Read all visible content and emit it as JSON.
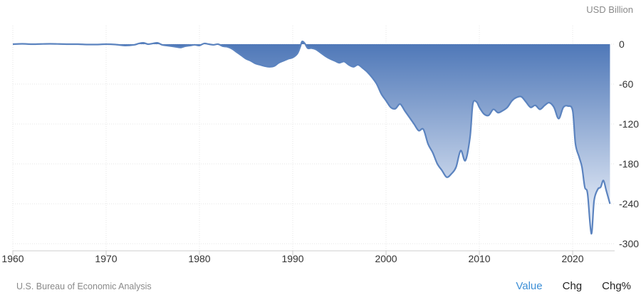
{
  "unit_label": "USD Billion",
  "source": "U.S. Bureau of Economic Analysis",
  "tabs": [
    {
      "label": "Value",
      "active": true
    },
    {
      "label": "Chg",
      "active": false
    },
    {
      "label": "Chg%",
      "active": false
    }
  ],
  "colors": {
    "line": "#5b83bf",
    "fill_top": "#4f78b8",
    "fill_bottom": "#e8eef8",
    "grid": "#e6e6e6",
    "tab_active": "#3d8fd6"
  },
  "chart_data": {
    "type": "area",
    "title": "",
    "xlabel": "",
    "ylabel": "USD Billion",
    "xlim": [
      1960,
      2024.5
    ],
    "ylim": [
      -300,
      12
    ],
    "grid": true,
    "y_axis_side": "right",
    "x_ticks": [
      1960,
      1970,
      1980,
      1990,
      2000,
      2010,
      2020
    ],
    "y_ticks": [
      0,
      -60,
      -120,
      -180,
      -240,
      -300
    ],
    "series": [
      {
        "values": [
          [
            1960,
            0
          ],
          [
            1961,
            0.5
          ],
          [
            1962,
            0
          ],
          [
            1963,
            0.3
          ],
          [
            1964,
            0.5
          ],
          [
            1965,
            0.3
          ],
          [
            1966,
            0
          ],
          [
            1967,
            0
          ],
          [
            1968,
            -0.5
          ],
          [
            1969,
            -0.5
          ],
          [
            1970,
            0
          ],
          [
            1971,
            -0.5
          ],
          [
            1972,
            -2
          ],
          [
            1973,
            -1
          ],
          [
            1973.5,
            1
          ],
          [
            1974,
            2
          ],
          [
            1974.5,
            0
          ],
          [
            1975,
            1
          ],
          [
            1975.5,
            2
          ],
          [
            1976,
            -1
          ],
          [
            1976.5,
            -2
          ],
          [
            1977,
            -3
          ],
          [
            1977.5,
            -4
          ],
          [
            1978,
            -5
          ],
          [
            1978.5,
            -3
          ],
          [
            1979,
            -2
          ],
          [
            1979.5,
            -1
          ],
          [
            1980,
            -2
          ],
          [
            1980.5,
            1
          ],
          [
            1981,
            0
          ],
          [
            1981.5,
            -1
          ],
          [
            1982,
            0
          ],
          [
            1982.5,
            -3
          ],
          [
            1983,
            -4
          ],
          [
            1983.5,
            -7
          ],
          [
            1984,
            -12
          ],
          [
            1984.5,
            -17
          ],
          [
            1985,
            -22
          ],
          [
            1985.5,
            -25
          ],
          [
            1986,
            -29
          ],
          [
            1986.5,
            -31
          ],
          [
            1987,
            -33
          ],
          [
            1987.5,
            -34
          ],
          [
            1988,
            -33
          ],
          [
            1988.5,
            -28
          ],
          [
            1989,
            -25
          ],
          [
            1989.5,
            -22
          ],
          [
            1990,
            -20
          ],
          [
            1990.5,
            -14
          ],
          [
            1990.8,
            -4
          ],
          [
            1991,
            4
          ],
          [
            1991.3,
            1
          ],
          [
            1991.6,
            -6
          ],
          [
            1992,
            -6
          ],
          [
            1992.5,
            -8
          ],
          [
            1993,
            -13
          ],
          [
            1993.5,
            -18
          ],
          [
            1994,
            -22
          ],
          [
            1994.5,
            -25
          ],
          [
            1995,
            -28
          ],
          [
            1995.5,
            -26
          ],
          [
            1996,
            -31
          ],
          [
            1996.5,
            -34
          ],
          [
            1997,
            -31
          ],
          [
            1997.5,
            -36
          ],
          [
            1998,
            -42
          ],
          [
            1998.5,
            -50
          ],
          [
            1999,
            -60
          ],
          [
            1999.5,
            -75
          ],
          [
            2000,
            -85
          ],
          [
            2000.5,
            -95
          ],
          [
            2001,
            -97
          ],
          [
            2001.5,
            -90
          ],
          [
            2002,
            -100
          ],
          [
            2002.5,
            -110
          ],
          [
            2003,
            -120
          ],
          [
            2003.5,
            -130
          ],
          [
            2004,
            -128
          ],
          [
            2004.5,
            -150
          ],
          [
            2005,
            -163
          ],
          [
            2005.5,
            -180
          ],
          [
            2006,
            -190
          ],
          [
            2006.5,
            -200
          ],
          [
            2007,
            -195
          ],
          [
            2007.5,
            -185
          ],
          [
            2008,
            -160
          ],
          [
            2008.5,
            -175
          ],
          [
            2009,
            -140
          ],
          [
            2009.3,
            -90
          ],
          [
            2009.7,
            -87
          ],
          [
            2010,
            -95
          ],
          [
            2010.5,
            -105
          ],
          [
            2011,
            -107
          ],
          [
            2011.5,
            -98
          ],
          [
            2012,
            -103
          ],
          [
            2012.5,
            -100
          ],
          [
            2013,
            -95
          ],
          [
            2013.5,
            -85
          ],
          [
            2014,
            -80
          ],
          [
            2014.5,
            -79
          ],
          [
            2015,
            -87
          ],
          [
            2015.5,
            -95
          ],
          [
            2016,
            -92
          ],
          [
            2016.5,
            -98
          ],
          [
            2017,
            -92
          ],
          [
            2017.5,
            -88
          ],
          [
            2018,
            -95
          ],
          [
            2018.5,
            -112
          ],
          [
            2019,
            -95
          ],
          [
            2019.5,
            -93
          ],
          [
            2020,
            -100
          ],
          [
            2020.3,
            -150
          ],
          [
            2020.7,
            -170
          ],
          [
            2021,
            -185
          ],
          [
            2021.3,
            -215
          ],
          [
            2021.6,
            -225
          ],
          [
            2022,
            -285
          ],
          [
            2022.3,
            -235
          ],
          [
            2022.7,
            -218
          ],
          [
            2023,
            -215
          ],
          [
            2023.3,
            -205
          ],
          [
            2023.6,
            -220
          ],
          [
            2024,
            -240
          ]
        ]
      }
    ]
  }
}
